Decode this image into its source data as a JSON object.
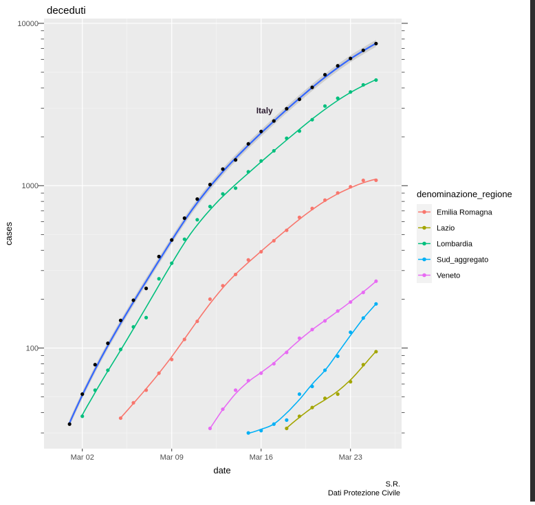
{
  "chart_data": {
    "type": "scatter",
    "title": "deceduti",
    "xlabel": "date",
    "ylabel": "cases",
    "y_scale": "log10",
    "ylim": [
      24,
      10700
    ],
    "xlim": [
      "2020-02-28",
      "2020-03-27"
    ],
    "y_ticks": [
      {
        "label": "100",
        "value": 100
      },
      {
        "label": "1000",
        "value": 1000
      },
      {
        "label": "10000",
        "value": 10000
      }
    ],
    "y_minor_ticks": [
      30,
      50,
      300,
      500,
      3000,
      5000
    ],
    "x_ticks": [
      {
        "label": "Mar 02",
        "value": "2020-03-02"
      },
      {
        "label": "Mar 09",
        "value": "2020-03-09"
      },
      {
        "label": "Mar 16",
        "value": "2020-03-16"
      },
      {
        "label": "Mar 23",
        "value": "2020-03-23"
      }
    ],
    "grid": true,
    "legend": {
      "title": "denominazione_regione",
      "position": "right",
      "entries": [
        "Emilia Romagna",
        "Lazio",
        "Lombardia",
        "Sud_aggregato",
        "Veneto"
      ]
    },
    "annotation": {
      "text": "Italy",
      "x": "2020-03-16",
      "y": 2900
    },
    "caption": [
      "S.R.",
      "Dati Protezione Civile"
    ],
    "series": [
      {
        "name": "Italy",
        "color": "#000000",
        "fit_color": "#3366ff",
        "band": true,
        "x": [
          "2020-03-01",
          "2020-03-02",
          "2020-03-03",
          "2020-03-04",
          "2020-03-05",
          "2020-03-06",
          "2020-03-07",
          "2020-03-08",
          "2020-03-09",
          "2020-03-10",
          "2020-03-11",
          "2020-03-12",
          "2020-03-13",
          "2020-03-14",
          "2020-03-15",
          "2020-03-16",
          "2020-03-17",
          "2020-03-18",
          "2020-03-19",
          "2020-03-20",
          "2020-03-21",
          "2020-03-22",
          "2020-03-23",
          "2020-03-24",
          "2020-03-25"
        ],
        "values": [
          34,
          52,
          79,
          107,
          148,
          197,
          233,
          366,
          463,
          631,
          827,
          1016,
          1266,
          1441,
          1809,
          2158,
          2503,
          2978,
          3405,
          4032,
          4825,
          5476,
          6077,
          6820,
          7503
        ]
      },
      {
        "name": "Emilia Romagna",
        "color": "#f8766d",
        "x": [
          "2020-03-05",
          "2020-03-06",
          "2020-03-07",
          "2020-03-08",
          "2020-03-09",
          "2020-03-10",
          "2020-03-11",
          "2020-03-12",
          "2020-03-13",
          "2020-03-14",
          "2020-03-15",
          "2020-03-16",
          "2020-03-17",
          "2020-03-18",
          "2020-03-19",
          "2020-03-20",
          "2020-03-21",
          "2020-03-22",
          "2020-03-23",
          "2020-03-24",
          "2020-03-25"
        ],
        "values": [
          37,
          46,
          55,
          70,
          85,
          113,
          146,
          200,
          242,
          284,
          349,
          392,
          458,
          531,
          638,
          724,
          815,
          902,
          984,
          1078,
          1080
        ]
      },
      {
        "name": "Lazio",
        "color": "#a3a500",
        "x": [
          "2020-03-18",
          "2020-03-19",
          "2020-03-20",
          "2020-03-21",
          "2020-03-22",
          "2020-03-23",
          "2020-03-24",
          "2020-03-25"
        ],
        "values": [
          32,
          38,
          43,
          49,
          52,
          62,
          79,
          95
        ]
      },
      {
        "name": "Lombardia",
        "color": "#00bf7d",
        "x": [
          "2020-03-02",
          "2020-03-03",
          "2020-03-04",
          "2020-03-05",
          "2020-03-06",
          "2020-03-07",
          "2020-03-08",
          "2020-03-09",
          "2020-03-10",
          "2020-03-11",
          "2020-03-12",
          "2020-03-13",
          "2020-03-14",
          "2020-03-15",
          "2020-03-16",
          "2020-03-17",
          "2020-03-18",
          "2020-03-19",
          "2020-03-20",
          "2020-03-21",
          "2020-03-22",
          "2020-03-23",
          "2020-03-24",
          "2020-03-25"
        ],
        "values": [
          38,
          55,
          73,
          98,
          135,
          154,
          267,
          333,
          468,
          617,
          744,
          890,
          966,
          1218,
          1420,
          1640,
          1959,
          2168,
          2549,
          3095,
          3456,
          3776,
          4178,
          4474
        ]
      },
      {
        "name": "Sud_aggregato",
        "color": "#00b0f6",
        "x": [
          "2020-03-15",
          "2020-03-16",
          "2020-03-17",
          "2020-03-18",
          "2020-03-19",
          "2020-03-20",
          "2020-03-21",
          "2020-03-22",
          "2020-03-23",
          "2020-03-24",
          "2020-03-25"
        ],
        "values": [
          30,
          31,
          34,
          36,
          52,
          58,
          73,
          89,
          125,
          153,
          187
        ]
      },
      {
        "name": "Veneto",
        "color": "#e76bf3",
        "x": [
          "2020-03-12",
          "2020-03-13",
          "2020-03-14",
          "2020-03-15",
          "2020-03-16",
          "2020-03-17",
          "2020-03-18",
          "2020-03-19",
          "2020-03-20",
          "2020-03-21",
          "2020-03-22",
          "2020-03-23",
          "2020-03-24",
          "2020-03-25"
        ],
        "values": [
          32,
          42,
          55,
          63,
          70,
          80,
          94,
          115,
          130,
          147,
          169,
          192,
          220,
          258
        ]
      }
    ]
  }
}
